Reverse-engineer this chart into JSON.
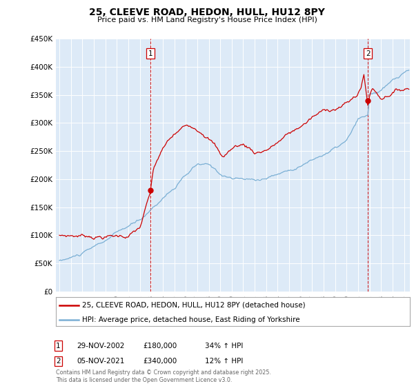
{
  "title": "25, CLEEVE ROAD, HEDON, HULL, HU12 8PY",
  "subtitle": "Price paid vs. HM Land Registry's House Price Index (HPI)",
  "red_color": "#cc0000",
  "blue_color": "#7aafd4",
  "plot_bg_color": "#ddeaf7",
  "ylim": [
    0,
    450000
  ],
  "yticks": [
    0,
    50000,
    100000,
    150000,
    200000,
    250000,
    300000,
    350000,
    400000,
    450000
  ],
  "ytick_labels": [
    "£0",
    "£50K",
    "£100K",
    "£150K",
    "£200K",
    "£250K",
    "£300K",
    "£350K",
    "£400K",
    "£450K"
  ],
  "event1_date": "29-NOV-2002",
  "event1_price": 180000,
  "event1_label": "£180,000",
  "event1_hpi_pct": "34% ↑ HPI",
  "event1_x": 2002.92,
  "event2_date": "05-NOV-2021",
  "event2_price": 340000,
  "event2_label": "£340,000",
  "event2_hpi_pct": "12% ↑ HPI",
  "event2_x": 2021.85,
  "legend_line1": "25, CLEEVE ROAD, HEDON, HULL, HU12 8PY (detached house)",
  "legend_line2": "HPI: Average price, detached house, East Riding of Yorkshire",
  "footer": "Contains HM Land Registry data © Crown copyright and database right 2025.\nThis data is licensed under the Open Government Licence v3.0.",
  "xmin": 1994.7,
  "xmax": 2025.5
}
